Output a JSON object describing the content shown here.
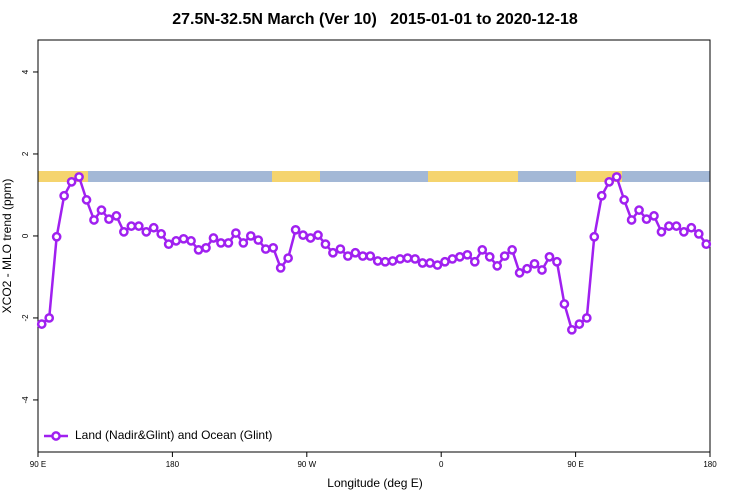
{
  "chart_data": {
    "type": "line",
    "title": "27.5N-32.5N March (Ver 10)   2015-01-01 to 2020-12-18",
    "xlabel": "Longitude (deg E)",
    "ylabel": "XCO2 - MLO trend (ppm)",
    "xlim": [
      90,
      540
    ],
    "xticks": [
      {
        "value": 90,
        "label": "90 E"
      },
      180,
      {
        "value": 270,
        "label": "90 W"
      },
      {
        "value": 360,
        "label": "0"
      },
      {
        "value": 450,
        "label": "90 E"
      },
      {
        "value": 540,
        "label": "180"
      }
    ],
    "ylim": [
      -5.27,
      4.78
    ],
    "yticks": [
      -4,
      -2,
      0,
      2,
      4
    ],
    "legend": "bottom-left",
    "x": [
      92.5,
      97.5,
      102.5,
      107.5,
      112.5,
      117.5,
      122.5,
      127.5,
      132.5,
      137.5,
      142.5,
      147.5,
      152.5,
      157.5,
      162.5,
      167.5,
      172.5,
      177.5,
      182.5,
      187.5,
      192.5,
      197.5,
      202.5,
      207.5,
      212.5,
      217.5,
      222.5,
      227.5,
      232.5,
      237.5,
      242.5,
      247.5,
      252.5,
      257.5,
      262.5,
      267.5,
      272.5,
      277.5,
      282.5,
      287.5,
      292.5,
      297.5,
      302.5,
      307.5,
      312.5,
      317.5,
      322.5,
      327.5,
      332.5,
      337.5,
      342.5,
      347.5,
      352.5,
      357.5,
      362.5,
      367.5,
      372.5,
      377.5,
      382.5,
      387.5,
      392.5,
      397.5,
      402.5,
      407.5,
      412.5,
      417.5,
      422.5,
      427.5,
      432.5,
      437.5,
      442.5,
      447.5,
      452.5,
      457.5,
      462.5,
      467.5,
      472.5,
      477.5,
      482.5,
      487.5,
      492.5,
      497.5,
      502.5,
      507.5,
      512.5,
      517.5,
      522.5,
      527.5,
      532.5,
      537.5
    ],
    "series": [
      {
        "name": "Land (Nadir&Glint) and Ocean (Glint)",
        "color": "#a020f0",
        "values": [
          -2.15,
          -2.0,
          -0.02,
          0.98,
          1.32,
          1.44,
          0.88,
          0.39,
          0.63,
          0.41,
          0.49,
          0.1,
          0.24,
          0.24,
          0.1,
          0.2,
          0.05,
          -0.2,
          -0.12,
          -0.07,
          -0.12,
          -0.34,
          -0.29,
          -0.05,
          -0.17,
          -0.17,
          0.07,
          -0.17,
          0,
          -0.1,
          -0.32,
          -0.29,
          -0.78,
          -0.54,
          0.15,
          0.02,
          -0.05,
          0.02,
          -0.2,
          -0.41,
          -0.32,
          -0.49,
          -0.41,
          -0.49,
          -0.49,
          -0.61,
          -0.63,
          -0.61,
          -0.56,
          -0.54,
          -0.56,
          -0.66,
          -0.66,
          -0.71,
          -0.63,
          -0.56,
          -0.51,
          -0.46,
          -0.63,
          -0.34,
          -0.51,
          -0.73,
          -0.49,
          -0.34,
          -0.9,
          -0.8,
          -0.68,
          -0.83,
          -0.51,
          -0.63,
          -1.66,
          -2.29,
          -2.15,
          -2.0,
          -0.02,
          0.98,
          1.32,
          1.44,
          0.88,
          0.39,
          0.63,
          0.41,
          0.49,
          0.1,
          0.24,
          0.24,
          0.1,
          0.2,
          0.05,
          -0.2
        ]
      }
    ]
  }
}
